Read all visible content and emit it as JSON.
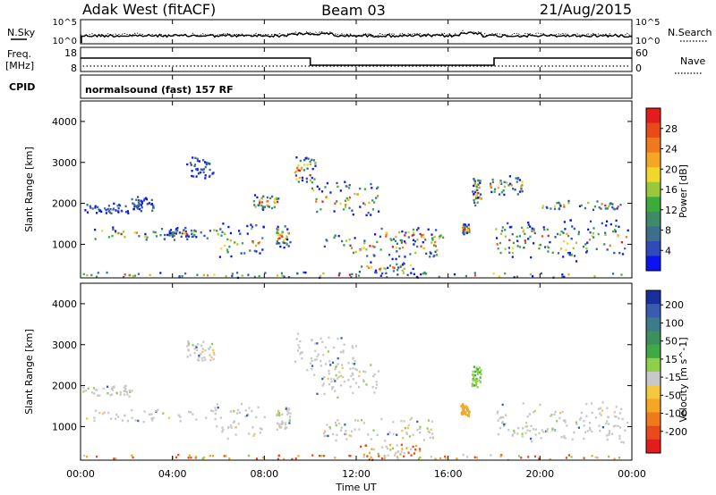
{
  "header": {
    "station": "Adak West (fitACF)",
    "beam": "Beam 03",
    "date": "21/Aug/2015"
  },
  "noise_panel": {
    "left_label": "N.Sky",
    "right_label": "N.Search",
    "ticks_left": [
      "10^5",
      "10^0"
    ],
    "ticks_right": [
      "10^5",
      "10^0"
    ]
  },
  "freq_panel": {
    "left_label_1": "Freq.",
    "left_label_2": "[MHz]",
    "right_label": "Nave",
    "ticks_left": [
      "18",
      "8"
    ],
    "ticks_right": [
      "60",
      "0"
    ]
  },
  "cpid": {
    "label": "CPID",
    "text": "normalsound (fast) 157 RF"
  },
  "x_axis": {
    "label": "Time UT",
    "ticks": [
      "00:00",
      "04:00",
      "08:00",
      "12:00",
      "16:00",
      "20:00",
      "00:00"
    ]
  },
  "chart_data": [
    {
      "type": "heatmap",
      "name": "power",
      "ylabel": "Slant Range [km]",
      "ylim": [
        180,
        4500
      ],
      "yticks": [
        "4000",
        "3000",
        "2000",
        "1000"
      ],
      "xlim_hours": [
        0,
        24
      ],
      "colorbar": {
        "label": "Power [dB]",
        "ticks": [
          "28",
          "24",
          "20",
          "16",
          "12",
          "8",
          "4"
        ],
        "colors": [
          "#0a14f0",
          "#2e4bb8",
          "#3e6e8e",
          "#3f8a6a",
          "#3cab3c",
          "#9ac83a",
          "#f0d72a",
          "#f5a623",
          "#ee7a1c",
          "#e84a1a",
          "#e31c1c"
        ]
      },
      "echo_regions": [
        {
          "t": [
            0.0,
            2.2
          ],
          "r": [
            1750,
            2050
          ]
        },
        {
          "t": [
            0.2,
            5.8
          ],
          "r": [
            1100,
            1450
          ]
        },
        {
          "t": [
            2.2,
            3.2
          ],
          "r": [
            1800,
            2200
          ]
        },
        {
          "t": [
            3.8,
            5.0
          ],
          "r": [
            1200,
            1400
          ]
        },
        {
          "t": [
            4.6,
            5.8
          ],
          "r": [
            2550,
            3200
          ]
        },
        {
          "t": [
            5.8,
            8.0
          ],
          "r": [
            700,
            1600
          ]
        },
        {
          "t": [
            7.5,
            8.6
          ],
          "r": [
            1850,
            2250
          ]
        },
        {
          "t": [
            8.5,
            9.1
          ],
          "r": [
            900,
            1550
          ]
        },
        {
          "t": [
            9.3,
            10.2
          ],
          "r": [
            2400,
            3200
          ]
        },
        {
          "t": [
            10.0,
            13.0
          ],
          "r": [
            1700,
            2600
          ]
        },
        {
          "t": [
            10.5,
            15.5
          ],
          "r": [
            650,
            1300
          ]
        },
        {
          "t": [
            12.0,
            15.0
          ],
          "r": [
            250,
            600
          ]
        },
        {
          "t": [
            13.0,
            15.8
          ],
          "r": [
            1050,
            1450
          ]
        },
        {
          "t": [
            16.6,
            16.9
          ],
          "r": [
            1250,
            1550
          ]
        },
        {
          "t": [
            17.0,
            17.4
          ],
          "r": [
            1900,
            2700
          ]
        },
        {
          "t": [
            18.0,
            23.8
          ],
          "r": [
            600,
            1650
          ]
        },
        {
          "t": [
            17.8,
            19.2
          ],
          "r": [
            2200,
            2700
          ]
        },
        {
          "t": [
            20.0,
            23.5
          ],
          "r": [
            1850,
            2100
          ]
        },
        {
          "t": [
            0.0,
            24.0
          ],
          "r": [
            200,
            350
          ]
        }
      ]
    },
    {
      "type": "heatmap",
      "name": "velocity",
      "ylabel": "Slant Range [km]",
      "ylim": [
        180,
        4500
      ],
      "yticks": [
        "4000",
        "3000",
        "2000",
        "1000"
      ],
      "xlim_hours": [
        0,
        24
      ],
      "colorbar": {
        "label": "Velocity [m s^-1]",
        "ticks": [
          "200",
          "100",
          "50",
          "15",
          "-15",
          "-50",
          "-100",
          "-200"
        ],
        "colors": [
          "#1a2f9e",
          "#3a5cb0",
          "#3d7a8a",
          "#3f8f5e",
          "#41a846",
          "#8fd04a",
          "#c8c8c8",
          "#f5c842",
          "#f5a623",
          "#ee7a1c",
          "#e84a1a",
          "#e31c1c"
        ]
      },
      "echo_regions": [
        {
          "t": [
            0.0,
            2.2
          ],
          "r": [
            1750,
            2050
          ]
        },
        {
          "t": [
            0.2,
            5.8
          ],
          "r": [
            1100,
            1450
          ]
        },
        {
          "t": [
            4.6,
            5.8
          ],
          "r": [
            2550,
            3200
          ]
        },
        {
          "t": [
            5.8,
            8.0
          ],
          "r": [
            700,
            1600
          ]
        },
        {
          "t": [
            8.5,
            9.1
          ],
          "r": [
            900,
            1550
          ]
        },
        {
          "t": [
            9.3,
            12.0
          ],
          "r": [
            2300,
            3300
          ]
        },
        {
          "t": [
            10.0,
            13.0
          ],
          "r": [
            1700,
            2600
          ]
        },
        {
          "t": [
            10.5,
            15.5
          ],
          "r": [
            650,
            1300
          ]
        },
        {
          "t": [
            12.0,
            15.0
          ],
          "r": [
            250,
            600
          ]
        },
        {
          "t": [
            16.5,
            16.9
          ],
          "r": [
            1250,
            1600
          ]
        },
        {
          "t": [
            17.0,
            17.4
          ],
          "r": [
            1900,
            2600
          ]
        },
        {
          "t": [
            18.0,
            23.8
          ],
          "r": [
            600,
            1650
          ]
        },
        {
          "t": [
            0.0,
            24.0
          ],
          "r": [
            200,
            350
          ]
        }
      ]
    }
  ]
}
